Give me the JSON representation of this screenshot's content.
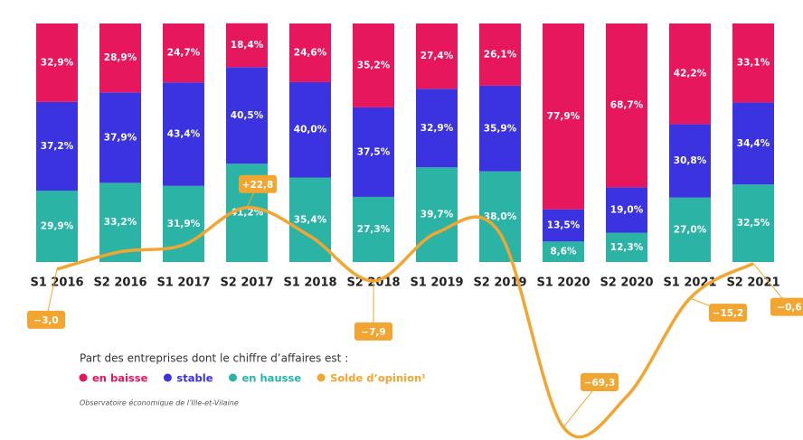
{
  "chart_data": {
    "type": "stacked-bar-line",
    "categories": [
      "S1 2016",
      "S2 2016",
      "S1 2017",
      "S2 2017",
      "S1 2018",
      "S2 2018",
      "S1 2019",
      "S2 2019",
      "S1 2020",
      "S2 2020",
      "S1 2021",
      "S2 2021"
    ],
    "series": [
      {
        "name": "en hausse",
        "color": "#2bb3a6",
        "values": [
          29.9,
          33.2,
          31.9,
          41.2,
          35.4,
          27.3,
          39.7,
          38.0,
          8.6,
          12.3,
          27.0,
          32.5
        ],
        "value_labels": [
          "29,9%",
          "33,2%",
          "31,9%",
          "41,2%",
          "35,4%",
          "27,3%",
          "39,7%",
          "38,0%",
          "8,6%",
          "12,3%",
          "27,0%",
          "32,5%"
        ]
      },
      {
        "name": "stable",
        "color": "#3b33df",
        "values": [
          37.2,
          37.9,
          43.4,
          40.5,
          40.0,
          37.5,
          32.9,
          35.9,
          13.5,
          19.0,
          30.8,
          34.4
        ],
        "value_labels": [
          "37,2%",
          "37,9%",
          "43,4%",
          "40,5%",
          "40,0%",
          "37,5%",
          "32,9%",
          "35,9%",
          "13,5%",
          "19,0%",
          "30,8%",
          "34,4%"
        ]
      },
      {
        "name": "en baisse",
        "color": "#e6175c",
        "values": [
          32.9,
          28.9,
          24.7,
          18.4,
          24.6,
          35.2,
          27.4,
          26.1,
          77.9,
          68.7,
          42.2,
          33.1
        ],
        "value_labels": [
          "32,9%",
          "28,9%",
          "24,7%",
          "18,4%",
          "24,6%",
          "35,2%",
          "27,4%",
          "26,1%",
          "77,9%",
          "68,7%",
          "42,2%",
          "33,1%"
        ]
      },
      {
        "name": "Solde d’opinion¹",
        "color": "#f2a531",
        "type": "line",
        "axis": "y2",
        "values": [
          -3.0,
          4.3,
          7.2,
          22.8,
          10.8,
          -7.9,
          12.3,
          11.9,
          -69.3,
          -56.4,
          -15.2,
          -0.6
        ],
        "value_labels": [
          "−3,0",
          null,
          null,
          "+22,8",
          null,
          "−7,9",
          null,
          null,
          "−69,3",
          null,
          "−15,2",
          "−0,6"
        ]
      }
    ],
    "ylim": [
      0,
      100
    ],
    "y2lim": [
      -72,
      100
    ],
    "legend_title": "Part des entreprises dont le chiffre d’affaires est :",
    "legend_order": [
      2,
      1,
      0,
      3
    ],
    "source": "Observatoire économique de l’Ille-et-Vilaine"
  }
}
